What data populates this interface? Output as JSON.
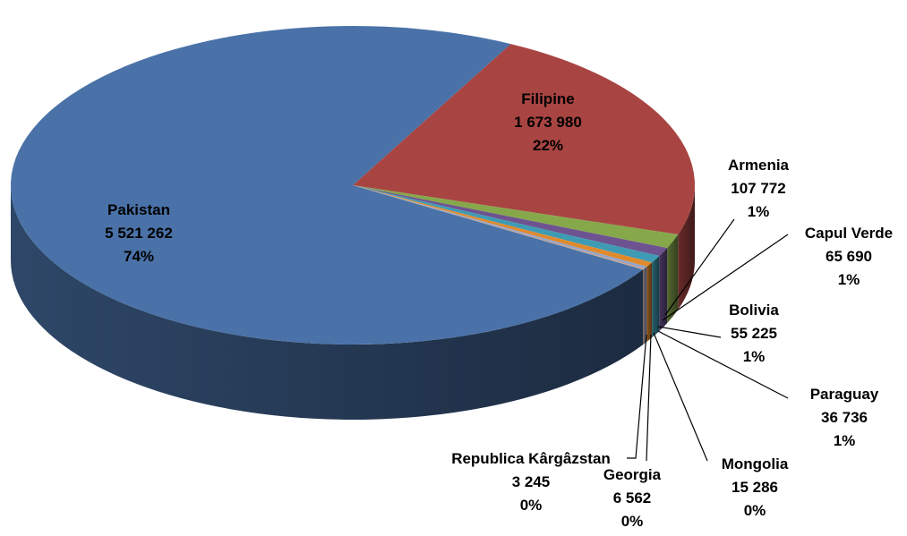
{
  "chart_data": {
    "type": "pie",
    "style": "3d-exploded-none",
    "slices": [
      {
        "name": "Pakistan",
        "value_text": "5 521 262",
        "value": 5521262,
        "percent_text": "74%",
        "color": "#4A72A8"
      },
      {
        "name": "Filipine",
        "value_text": "1 673 980",
        "value": 1673980,
        "percent_text": "22%",
        "color": "#A84542"
      },
      {
        "name": "Armenia",
        "value_text": "107 772",
        "value": 107772,
        "percent_text": "1%",
        "color": "#86A84B"
      },
      {
        "name": "Capul Verde",
        "value_text": "65 690",
        "value": 65690,
        "percent_text": "1%",
        "color": "#6D5390"
      },
      {
        "name": "Bolivia",
        "value_text": "55 225",
        "value": 55225,
        "percent_text": "1%",
        "color": "#3E9BB3"
      },
      {
        "name": "Paraguay",
        "value_text": "36 736",
        "value": 36736,
        "percent_text": "1%",
        "color": "#E08A2E"
      },
      {
        "name": "Mongolia",
        "value_text": "15 286",
        "value": 15286,
        "percent_text": "0%",
        "color": "#8EA6D0"
      },
      {
        "name": "Georgia",
        "value_text": "6 562",
        "value": 6562,
        "percent_text": "0%",
        "color": "#D08A88"
      },
      {
        "name": "Republica Kârgâzstan",
        "value_text": "3 245",
        "value": 3245,
        "percent_text": "0%",
        "color": "#B5CB8B"
      }
    ]
  }
}
